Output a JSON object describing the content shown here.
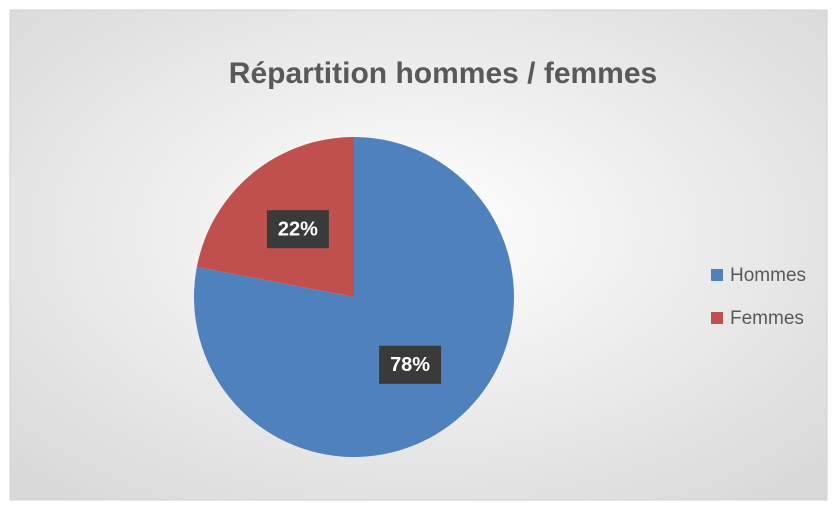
{
  "chart_data": {
    "type": "pie",
    "title": "Répartition hommes / femmes",
    "categories": [
      "Hommes",
      "Femmes"
    ],
    "values": [
      78,
      22
    ],
    "value_labels": [
      "78%",
      "22%"
    ],
    "colors": [
      "#4f81bd",
      "#c0504d"
    ],
    "legend": "right"
  }
}
